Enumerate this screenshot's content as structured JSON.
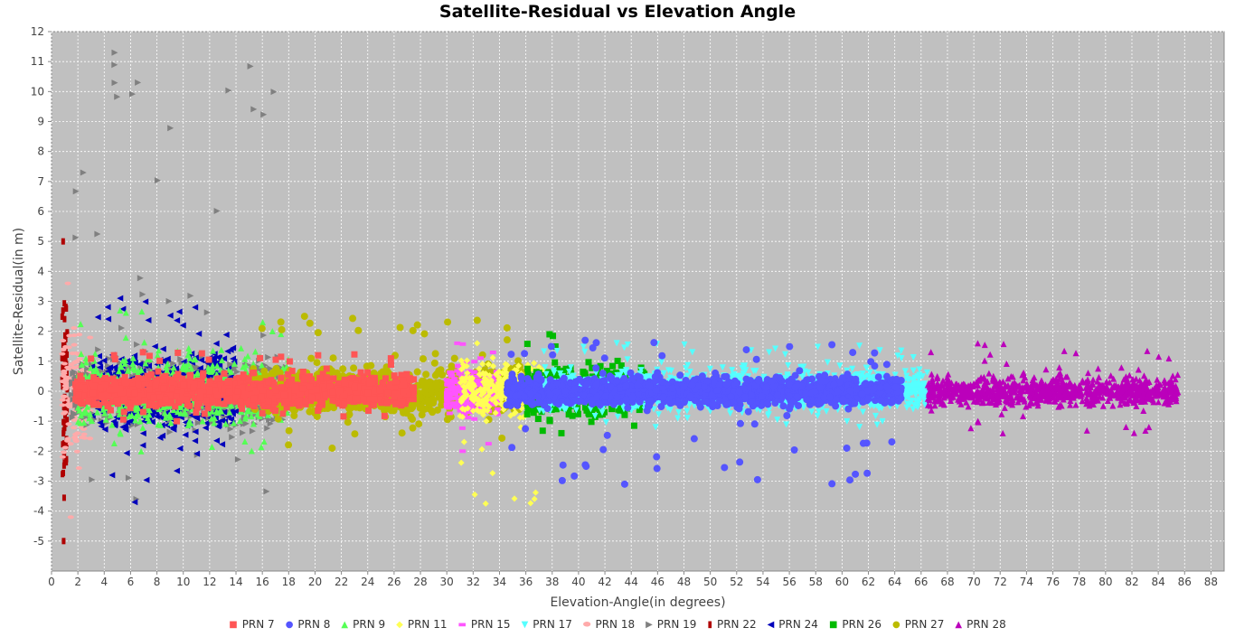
{
  "chart_data": {
    "type": "scatter",
    "title": "Satellite-Residual vs Elevation Angle",
    "xlabel": "Elevation-Angle(in degrees)",
    "ylabel": "Satellite-Residual(in m)",
    "xlim": [
      0,
      89
    ],
    "ylim": [
      -6,
      12
    ],
    "xticks": [
      0,
      2,
      4,
      6,
      8,
      10,
      12,
      14,
      16,
      18,
      20,
      22,
      24,
      26,
      28,
      30,
      32,
      34,
      36,
      38,
      40,
      42,
      44,
      46,
      48,
      50,
      52,
      54,
      56,
      58,
      60,
      62,
      64,
      66,
      68,
      70,
      72,
      74,
      76,
      78,
      80,
      82,
      84,
      86,
      88
    ],
    "yticks": [
      -5,
      -4,
      -3,
      -2,
      -1,
      0,
      1,
      2,
      3,
      4,
      5,
      6,
      7,
      8,
      9,
      10,
      11,
      12
    ],
    "grid": true,
    "legend_position": "bottom",
    "series": [
      {
        "name": "PRN 7",
        "color": "#ff5555",
        "marker": "square",
        "elev_range": [
          1.8,
          27.5
        ],
        "residual_range": [
          -1.0,
          1.3
        ],
        "spread": 0.55
      },
      {
        "name": "PRN 8",
        "color": "#5555ff",
        "marker": "circle",
        "elev_range": [
          34.5,
          64.5
        ],
        "residual_range": [
          -3.1,
          1.7
        ],
        "spread": 0.5
      },
      {
        "name": "PRN 9",
        "color": "#55ff55",
        "marker": "triangle-up",
        "elev_range": [
          2.0,
          18.0
        ],
        "residual_range": [
          -2.0,
          2.7
        ],
        "spread": 1.1
      },
      {
        "name": "PRN 11",
        "color": "#ffff55",
        "marker": "diamond",
        "elev_range": [
          31.0,
          37.5
        ],
        "residual_range": [
          -3.75,
          1.6
        ],
        "spread": 0.9
      },
      {
        "name": "PRN 15",
        "color": "#ff55ff",
        "marker": "rect",
        "elev_range": [
          30.0,
          34.0
        ],
        "residual_range": [
          -2.0,
          1.6
        ],
        "spread": 0.9
      },
      {
        "name": "PRN 17",
        "color": "#55ffff",
        "marker": "triangle-down",
        "elev_range": [
          37.0,
          66.5
        ],
        "residual_range": [
          -1.2,
          1.6
        ],
        "spread": 0.7
      },
      {
        "name": "PRN 18",
        "color": "#ffaaaa",
        "marker": "circle-small",
        "elev_range": [
          0.8,
          3.0
        ],
        "residual_range": [
          -4.2,
          3.6
        ],
        "spread": 2.0
      },
      {
        "name": "PRN 19",
        "color": "#808080",
        "marker": "triangle-right",
        "elev_range": [
          1.5,
          18.0
        ],
        "residual_range": [
          -3.6,
          11.3
        ],
        "spread": 1.2
      },
      {
        "name": "PRN 22",
        "color": "#b00000",
        "marker": "rect-tall",
        "elev_range": [
          0.8,
          1.2
        ],
        "residual_range": [
          -5.0,
          5.0
        ],
        "spread": 3.0
      },
      {
        "name": "PRN 24",
        "color": "#0000bb",
        "marker": "triangle-left",
        "elev_range": [
          3.0,
          14.0
        ],
        "residual_range": [
          -3.7,
          3.1
        ],
        "spread": 1.4
      },
      {
        "name": "PRN 26",
        "color": "#00bb00",
        "marker": "square",
        "elev_range": [
          36.0,
          45.0
        ],
        "residual_range": [
          -1.4,
          1.9
        ],
        "spread": 0.8
      },
      {
        "name": "PRN 27",
        "color": "#bbbb00",
        "marker": "circle",
        "elev_range": [
          15.0,
          36.0
        ],
        "residual_range": [
          -1.9,
          2.5
        ],
        "spread": 0.8
      },
      {
        "name": "PRN 28",
        "color": "#bb00bb",
        "marker": "triangle-up",
        "elev_range": [
          66.5,
          85.5
        ],
        "residual_range": [
          -1.4,
          1.6
        ],
        "spread": 0.5
      }
    ]
  }
}
